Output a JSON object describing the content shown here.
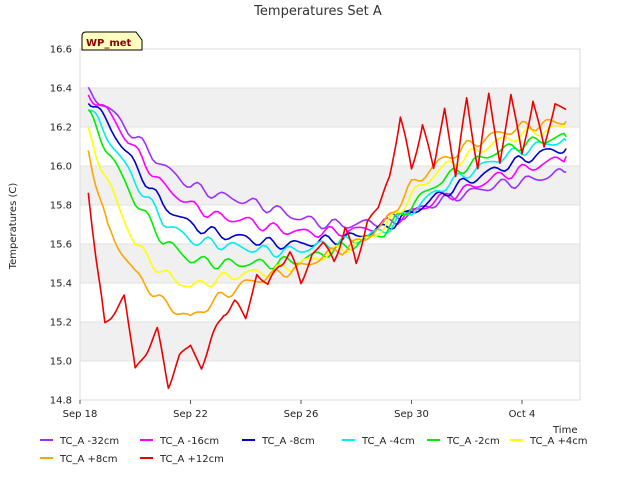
{
  "chart_data": {
    "type": "line",
    "title": "Temperatures Set A",
    "xlabel": "Time",
    "ylabel": "Temperatures (C)",
    "badge": "WP_met",
    "x_ticks": [
      "Sep 18",
      "Sep 22",
      "Sep 26",
      "Sep 30",
      "Oct 4"
    ],
    "x_tick_days": [
      0,
      4,
      8,
      12,
      16
    ],
    "xlim": [
      0,
      18.1
    ],
    "ylim": [
      14.8,
      16.6
    ],
    "y_ticks": [
      "14.8",
      "15.0",
      "15.2",
      "15.4",
      "15.6",
      "15.8",
      "16.0",
      "16.2",
      "16.4",
      "16.6"
    ],
    "banding": "alternating grey bands",
    "legend_position": "bottom",
    "x_unit_note": "x values are days since Sep 18 (Sep 18 = 0, Oct 4 = 16)",
    "series": [
      {
        "name": "TC_A -32cm",
        "color": "#9b30ff",
        "x": [
          0.3,
          1,
          2,
          3,
          4,
          5,
          6,
          7,
          8,
          9,
          10,
          11,
          12,
          13,
          14,
          15,
          16,
          17,
          17.6
        ],
        "y": [
          16.38,
          16.3,
          16.15,
          16.0,
          15.9,
          15.85,
          15.82,
          15.78,
          15.73,
          15.7,
          15.7,
          15.72,
          15.76,
          15.82,
          15.86,
          15.9,
          15.92,
          15.95,
          15.97
        ]
      },
      {
        "name": "TC_A -16cm",
        "color": "#ff00ff",
        "x": [
          0.3,
          1,
          2,
          3,
          4,
          5,
          6,
          7,
          8,
          9,
          10,
          11,
          12,
          13,
          14,
          15,
          16,
          17,
          17.6
        ],
        "y": [
          16.37,
          16.28,
          16.08,
          15.9,
          15.8,
          15.74,
          15.72,
          15.68,
          15.66,
          15.66,
          15.67,
          15.7,
          15.76,
          15.83,
          15.88,
          15.94,
          15.98,
          16.02,
          16.05
        ]
      },
      {
        "name": "TC_A -8cm",
        "color": "#0000cd",
        "x": [
          0.3,
          1,
          2,
          3,
          4,
          5,
          6,
          7,
          8,
          9,
          10,
          11,
          12,
          13,
          14,
          15,
          16,
          17,
          17.6
        ],
        "y": [
          16.35,
          16.22,
          16.0,
          15.8,
          15.7,
          15.65,
          15.63,
          15.6,
          15.6,
          15.62,
          15.64,
          15.68,
          15.76,
          15.85,
          15.92,
          15.98,
          16.03,
          16.08,
          16.09
        ]
      },
      {
        "name": "TC_A -4cm",
        "color": "#00eeee",
        "x": [
          0.3,
          1,
          2,
          3,
          4,
          5,
          6,
          7,
          8,
          9,
          10,
          11,
          12,
          13,
          14,
          15,
          16,
          17,
          17.6
        ],
        "y": [
          16.3,
          16.15,
          15.92,
          15.72,
          15.62,
          15.6,
          15.58,
          15.56,
          15.57,
          15.6,
          15.62,
          15.67,
          15.77,
          15.88,
          15.96,
          16.03,
          16.08,
          16.12,
          16.13
        ]
      },
      {
        "name": "TC_A -2cm",
        "color": "#00ee00",
        "x": [
          0.3,
          1,
          2,
          3,
          4,
          5,
          6,
          7,
          8,
          9,
          10,
          11,
          12,
          13,
          14,
          15,
          16,
          17,
          17.6
        ],
        "y": [
          16.27,
          16.08,
          15.82,
          15.62,
          15.52,
          15.5,
          15.5,
          15.5,
          15.52,
          15.56,
          15.6,
          15.66,
          15.8,
          15.92,
          16.0,
          16.07,
          16.11,
          16.14,
          16.15
        ]
      },
      {
        "name": "TC_A +4cm",
        "color": "#ffff00",
        "x": [
          0.3,
          1,
          2,
          3,
          4,
          5,
          6,
          7,
          8,
          9,
          10,
          11,
          12,
          13,
          14,
          15,
          16,
          17,
          17.6
        ],
        "y": [
          16.17,
          15.92,
          15.6,
          15.45,
          15.38,
          15.42,
          15.45,
          15.46,
          15.5,
          15.55,
          15.6,
          15.68,
          15.85,
          15.98,
          16.05,
          16.12,
          16.16,
          16.19,
          16.2
        ]
      },
      {
        "name": "TC_A +8cm",
        "color": "#ffa500",
        "x": [
          0.3,
          1,
          2,
          3,
          4,
          5,
          6,
          7,
          8,
          9,
          10,
          11,
          12,
          13,
          14,
          15,
          16,
          17,
          17.6
        ],
        "y": [
          16.08,
          15.68,
          15.45,
          15.3,
          15.22,
          15.32,
          15.4,
          15.44,
          15.48,
          15.55,
          15.6,
          15.7,
          15.9,
          16.02,
          16.1,
          16.16,
          16.2,
          16.22,
          16.23
        ]
      },
      {
        "name": "TC_A +12cm",
        "color": "#ee0000",
        "x": [
          0.3,
          0.6,
          0.9,
          1.2,
          1.6,
          2.0,
          2.4,
          2.8,
          3.2,
          3.6,
          4.0,
          4.4,
          4.8,
          5.2,
          5.6,
          6.0,
          6.4,
          6.8,
          7.2,
          7.6,
          8.0,
          8.4,
          8.8,
          9.2,
          9.6,
          10.0,
          10.4,
          10.8,
          11.2,
          11.6,
          12.0,
          12.4,
          12.8,
          13.2,
          13.6,
          14.0,
          14.4,
          14.8,
          15.2,
          15.6,
          16.0,
          16.4,
          16.8,
          17.2,
          17.6
        ],
        "y": [
          15.88,
          15.5,
          15.18,
          15.25,
          15.33,
          14.96,
          15.05,
          15.15,
          14.88,
          15.02,
          15.08,
          14.97,
          15.12,
          15.25,
          15.3,
          15.22,
          15.45,
          15.38,
          15.5,
          15.55,
          15.4,
          15.55,
          15.6,
          15.52,
          15.68,
          15.5,
          15.72,
          15.78,
          15.95,
          16.25,
          15.98,
          16.22,
          15.98,
          16.3,
          15.95,
          16.34,
          16.0,
          16.36,
          16.02,
          16.37,
          16.05,
          16.35,
          16.08,
          16.33,
          16.29
        ]
      }
    ]
  }
}
